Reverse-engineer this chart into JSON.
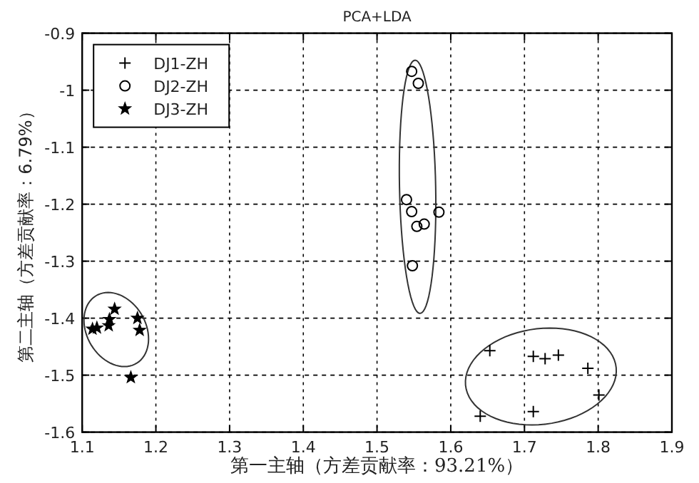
{
  "chart_data": {
    "type": "scatter",
    "title": "PCA+LDA",
    "xlabel": "第一主轴（方差贡献率：93.21%）",
    "ylabel": "第二主轴（方差贡献率：6.79%）",
    "xlim": [
      1.1,
      1.9
    ],
    "ylim": [
      -1.6,
      -0.9
    ],
    "xticks": [
      1.1,
      1.2,
      1.3,
      1.4,
      1.5,
      1.6,
      1.7,
      1.8,
      1.9
    ],
    "yticks": [
      -1.6,
      -1.5,
      -1.4,
      -1.3,
      -1.2,
      -1.1,
      -1,
      -0.9
    ],
    "grid": true,
    "legend": "top left",
    "series": [
      {
        "name": "DJ1-ZH",
        "color": "#000000",
        "marker": "cross",
        "x": [
          1.653,
          1.64,
          1.712,
          1.728,
          1.746,
          1.786,
          1.801,
          1.712
        ],
        "values": [
          -1.457,
          -1.572,
          -1.467,
          -1.471,
          -1.465,
          -1.488,
          -1.535,
          -1.564
        ]
      },
      {
        "name": "DJ2-ZH",
        "color": "#000000",
        "marker": "circle",
        "x": [
          1.547,
          1.556,
          1.54,
          1.547,
          1.584,
          1.564,
          1.554,
          1.548
        ],
        "values": [
          -0.967,
          -0.988,
          -1.192,
          -1.213,
          -1.214,
          -1.235,
          -1.239,
          -1.308
        ]
      },
      {
        "name": "DJ3-ZH",
        "color": "#000000",
        "marker": "star",
        "x": [
          1.114,
          1.12,
          1.136,
          1.137,
          1.144,
          1.175,
          1.178,
          1.166
        ],
        "values": [
          -1.419,
          -1.417,
          -1.413,
          -1.402,
          -1.384,
          -1.4,
          -1.421,
          -1.504
        ]
      }
    ]
  }
}
